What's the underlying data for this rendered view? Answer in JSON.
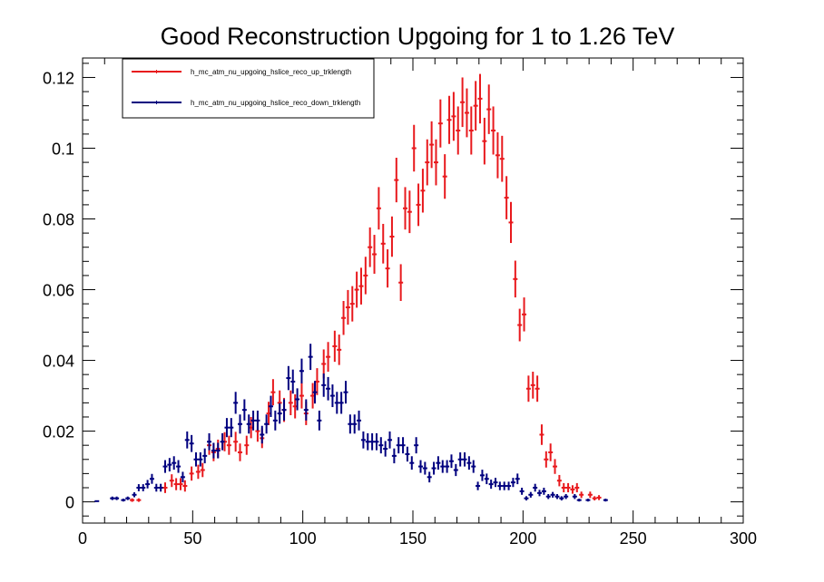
{
  "chart_data": {
    "type": "scatter",
    "title": "Good Reconstruction Upgoing for 1 to 1.26 TeV",
    "xlabel": "",
    "ylabel": "",
    "xlim": [
      0,
      300
    ],
    "ylim": [
      -0.006,
      0.1255
    ],
    "x_ticks": [
      0,
      50,
      100,
      150,
      200,
      250,
      300
    ],
    "x_tick_labels": [
      "0",
      "50",
      "100",
      "150",
      "200",
      "250",
      "300"
    ],
    "y_ticks": [
      0,
      0.02,
      0.04,
      0.06,
      0.08,
      0.1,
      0.12
    ],
    "y_tick_labels": [
      "0",
      "0.02",
      "0.04",
      "0.06",
      "0.08",
      "0.1",
      "0.12"
    ],
    "grid": false,
    "legend_position": "top-left",
    "series": [
      {
        "name": "h_mc_atm_nu_upgoing_hslice_reco_up_trklength",
        "color": "#e8191d",
        "points": [
          [
            22.5,
            0.0005,
            0.0005
          ],
          [
            25.5,
            0.0005,
            0.0005
          ],
          [
            37.5,
            0.004,
            0.0015
          ],
          [
            40.5,
            0.006,
            0.0018
          ],
          [
            42.5,
            0.005,
            0.0017
          ],
          [
            44.5,
            0.005,
            0.0017
          ],
          [
            46.5,
            0.0045,
            0.0016
          ],
          [
            49.5,
            0.008,
            0.002
          ],
          [
            52.5,
            0.0085,
            0.002
          ],
          [
            54.5,
            0.009,
            0.002
          ],
          [
            57.5,
            0.016,
            0.0027
          ],
          [
            59.5,
            0.014,
            0.0025
          ],
          [
            61.5,
            0.015,
            0.0026
          ],
          [
            64.5,
            0.017,
            0.0027
          ],
          [
            66.5,
            0.016,
            0.0027
          ],
          [
            69.5,
            0.017,
            0.0028
          ],
          [
            71.5,
            0.014,
            0.0025
          ],
          [
            74.5,
            0.016,
            0.0027
          ],
          [
            76.5,
            0.021,
            0.003
          ],
          [
            79.5,
            0.02,
            0.003
          ],
          [
            81.5,
            0.018,
            0.0028
          ],
          [
            84.5,
            0.025,
            0.0033
          ],
          [
            86.5,
            0.031,
            0.0037
          ],
          [
            89.5,
            0.028,
            0.0035
          ],
          [
            91.5,
            0.026,
            0.0034
          ],
          [
            94.5,
            0.028,
            0.0035
          ],
          [
            96.5,
            0.027,
            0.0034
          ],
          [
            99.5,
            0.03,
            0.0036
          ],
          [
            101.5,
            0.025,
            0.0033
          ],
          [
            104.5,
            0.03,
            0.0036
          ],
          [
            106.5,
            0.034,
            0.0038
          ],
          [
            109.5,
            0.039,
            0.0041
          ],
          [
            111.5,
            0.041,
            0.0042
          ],
          [
            114.5,
            0.044,
            0.0044
          ],
          [
            116.5,
            0.043,
            0.0043
          ],
          [
            118.5,
            0.052,
            0.0048
          ],
          [
            120.5,
            0.055,
            0.0049
          ],
          [
            122.5,
            0.056,
            0.005
          ],
          [
            124.5,
            0.06,
            0.0051
          ],
          [
            126.5,
            0.061,
            0.0052
          ],
          [
            128.5,
            0.064,
            0.0053
          ],
          [
            130.5,
            0.072,
            0.0056
          ],
          [
            132.5,
            0.07,
            0.0055
          ],
          [
            134.5,
            0.083,
            0.006
          ],
          [
            136.5,
            0.073,
            0.0056
          ],
          [
            138.5,
            0.066,
            0.0054
          ],
          [
            140.5,
            0.075,
            0.0057
          ],
          [
            142.5,
            0.091,
            0.0063
          ],
          [
            144.5,
            0.062,
            0.0052
          ],
          [
            146.5,
            0.083,
            0.006
          ],
          [
            148.5,
            0.082,
            0.006
          ],
          [
            150.5,
            0.1,
            0.0066
          ],
          [
            152.5,
            0.084,
            0.006
          ],
          [
            154.5,
            0.088,
            0.0062
          ],
          [
            156.5,
            0.096,
            0.0065
          ],
          [
            158.5,
            0.101,
            0.0066
          ],
          [
            160.5,
            0.096,
            0.0065
          ],
          [
            162.5,
            0.107,
            0.0068
          ],
          [
            164.5,
            0.092,
            0.0063
          ],
          [
            166.5,
            0.108,
            0.0068
          ],
          [
            168.5,
            0.109,
            0.0069
          ],
          [
            170.5,
            0.105,
            0.0068
          ],
          [
            172.5,
            0.113,
            0.007
          ],
          [
            174.5,
            0.11,
            0.0069
          ],
          [
            176.5,
            0.105,
            0.0068
          ],
          [
            178.5,
            0.112,
            0.007
          ],
          [
            180.5,
            0.114,
            0.007
          ],
          [
            182.5,
            0.102,
            0.0066
          ],
          [
            184.5,
            0.111,
            0.007
          ],
          [
            186.5,
            0.105,
            0.0068
          ],
          [
            188.5,
            0.098,
            0.0065
          ],
          [
            190.5,
            0.097,
            0.0065
          ],
          [
            192.5,
            0.086,
            0.0061
          ],
          [
            194.5,
            0.079,
            0.0058
          ],
          [
            196.5,
            0.063,
            0.0052
          ],
          [
            198.5,
            0.05,
            0.0046
          ],
          [
            200.5,
            0.053,
            0.0048
          ],
          [
            202.5,
            0.032,
            0.0037
          ],
          [
            204.5,
            0.033,
            0.0038
          ],
          [
            206.5,
            0.032,
            0.0037
          ],
          [
            208.5,
            0.019,
            0.0029
          ],
          [
            210.5,
            0.012,
            0.0023
          ],
          [
            212.5,
            0.014,
            0.0025
          ],
          [
            214.5,
            0.01,
            0.0021
          ],
          [
            216.5,
            0.006,
            0.0016
          ],
          [
            218.5,
            0.004,
            0.0013
          ],
          [
            220.5,
            0.004,
            0.0013
          ],
          [
            222.5,
            0.0035,
            0.0012
          ],
          [
            224.5,
            0.004,
            0.0013
          ],
          [
            226.5,
            0.002,
            0.0009
          ],
          [
            230.5,
            0.002,
            0.0009
          ],
          [
            232.5,
            0.001,
            0.0006
          ],
          [
            234.5,
            0.0012,
            0.0007
          ]
        ]
      },
      {
        "name": "h_mc_atm_nu_upgoing_hslice_reco_down_trklength",
        "color": "#00007f",
        "points": [
          [
            6.5,
            0.0002,
            0.0002
          ],
          [
            13.5,
            0.001,
            0.0005
          ],
          [
            15.5,
            0.001,
            0.0005
          ],
          [
            18.5,
            0.0005,
            0.0004
          ],
          [
            20.5,
            0.001,
            0.0005
          ],
          [
            23.5,
            0.002,
            0.0007
          ],
          [
            25.5,
            0.004,
            0.001
          ],
          [
            27.5,
            0.004,
            0.001
          ],
          [
            29.5,
            0.005,
            0.0012
          ],
          [
            31.5,
            0.0065,
            0.0014
          ],
          [
            33.5,
            0.004,
            0.0011
          ],
          [
            35.5,
            0.004,
            0.0011
          ],
          [
            37.5,
            0.01,
            0.0018
          ],
          [
            39.5,
            0.0105,
            0.0019
          ],
          [
            41.5,
            0.011,
            0.0019
          ],
          [
            43.5,
            0.01,
            0.0018
          ],
          [
            45.5,
            0.007,
            0.0015
          ],
          [
            47.5,
            0.0175,
            0.0024
          ],
          [
            49.5,
            0.0165,
            0.0024
          ],
          [
            51.5,
            0.012,
            0.002
          ],
          [
            53.5,
            0.012,
            0.002
          ],
          [
            55.5,
            0.013,
            0.0021
          ],
          [
            57.5,
            0.017,
            0.0024
          ],
          [
            59.5,
            0.0145,
            0.0022
          ],
          [
            61.5,
            0.0145,
            0.0022
          ],
          [
            63.5,
            0.017,
            0.0024
          ],
          [
            65.5,
            0.021,
            0.0027
          ],
          [
            67.5,
            0.021,
            0.0027
          ],
          [
            69.5,
            0.028,
            0.0031
          ],
          [
            71.5,
            0.022,
            0.0027
          ],
          [
            73.5,
            0.026,
            0.003
          ],
          [
            75.5,
            0.022,
            0.0027
          ],
          [
            77.5,
            0.023,
            0.0028
          ],
          [
            79.5,
            0.023,
            0.0028
          ],
          [
            81.5,
            0.019,
            0.0025
          ],
          [
            83.5,
            0.022,
            0.0027
          ],
          [
            85.5,
            0.027,
            0.003
          ],
          [
            87.5,
            0.023,
            0.0028
          ],
          [
            89.5,
            0.025,
            0.0029
          ],
          [
            91.5,
            0.026,
            0.003
          ],
          [
            93.5,
            0.035,
            0.0034
          ],
          [
            95.5,
            0.034,
            0.0034
          ],
          [
            97.5,
            0.029,
            0.0031
          ],
          [
            99.5,
            0.037,
            0.0035
          ],
          [
            101.5,
            0.026,
            0.003
          ],
          [
            103.5,
            0.041,
            0.0037
          ],
          [
            105.5,
            0.031,
            0.0032
          ],
          [
            107.5,
            0.023,
            0.0028
          ],
          [
            109.5,
            0.033,
            0.0033
          ],
          [
            111.5,
            0.032,
            0.0033
          ],
          [
            113.5,
            0.03,
            0.0032
          ],
          [
            115.5,
            0.028,
            0.0031
          ],
          [
            117.5,
            0.028,
            0.0031
          ],
          [
            119.5,
            0.031,
            0.0032
          ],
          [
            121.5,
            0.022,
            0.0027
          ],
          [
            123.5,
            0.022,
            0.0027
          ],
          [
            125.5,
            0.023,
            0.0028
          ],
          [
            127.5,
            0.0175,
            0.0024
          ],
          [
            129.5,
            0.017,
            0.0024
          ],
          [
            131.5,
            0.017,
            0.0024
          ],
          [
            133.5,
            0.017,
            0.0024
          ],
          [
            135.5,
            0.016,
            0.0023
          ],
          [
            137.5,
            0.015,
            0.0022
          ],
          [
            139.5,
            0.0175,
            0.0024
          ],
          [
            141.5,
            0.013,
            0.0021
          ],
          [
            143.5,
            0.016,
            0.0023
          ],
          [
            145.5,
            0.016,
            0.0023
          ],
          [
            147.5,
            0.0135,
            0.0021
          ],
          [
            149.5,
            0.011,
            0.0019
          ],
          [
            151.5,
            0.016,
            0.0023
          ],
          [
            153.5,
            0.01,
            0.0018
          ],
          [
            155.5,
            0.0095,
            0.0018
          ],
          [
            157.5,
            0.007,
            0.0015
          ],
          [
            159.5,
            0.0095,
            0.0018
          ],
          [
            161.5,
            0.011,
            0.0019
          ],
          [
            163.5,
            0.01,
            0.0018
          ],
          [
            165.5,
            0.01,
            0.0018
          ],
          [
            167.5,
            0.0115,
            0.0019
          ],
          [
            169.5,
            0.009,
            0.0017
          ],
          [
            171.5,
            0.012,
            0.002
          ],
          [
            173.5,
            0.012,
            0.002
          ],
          [
            175.5,
            0.011,
            0.0019
          ],
          [
            177.5,
            0.01,
            0.0018
          ],
          [
            179.5,
            0.0045,
            0.0012
          ],
          [
            181.5,
            0.0075,
            0.0016
          ],
          [
            183.5,
            0.0065,
            0.0015
          ],
          [
            185.5,
            0.005,
            0.0013
          ],
          [
            187.5,
            0.0055,
            0.0013
          ],
          [
            189.5,
            0.0045,
            0.0012
          ],
          [
            191.5,
            0.0045,
            0.0012
          ],
          [
            193.5,
            0.0045,
            0.0012
          ],
          [
            195.5,
            0.0055,
            0.0013
          ],
          [
            197.5,
            0.0065,
            0.0015
          ],
          [
            199.5,
            0.003,
            0.001
          ],
          [
            201.5,
            0.001,
            0.0006
          ],
          [
            203.5,
            0.002,
            0.0008
          ],
          [
            205.5,
            0.004,
            0.0011
          ],
          [
            207.5,
            0.0025,
            0.0009
          ],
          [
            209.5,
            0.003,
            0.001
          ],
          [
            211.5,
            0.0015,
            0.0007
          ],
          [
            213.5,
            0.002,
            0.0008
          ],
          [
            215.5,
            0.0015,
            0.0007
          ],
          [
            217.5,
            0.001,
            0.0006
          ],
          [
            219.5,
            0.0015,
            0.0007
          ],
          [
            223.5,
            0.0015,
            0.0007
          ],
          [
            225.5,
            0.0005,
            0.0004
          ],
          [
            229.5,
            0.0005,
            0.0004
          ],
          [
            237.5,
            0.0005,
            0.0004
          ]
        ]
      }
    ]
  }
}
